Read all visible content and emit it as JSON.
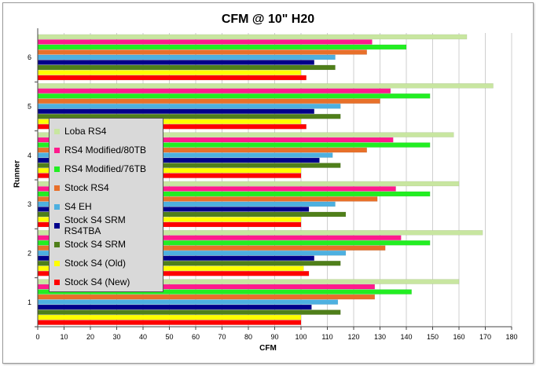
{
  "chart_data": {
    "type": "bar",
    "orientation": "horizontal",
    "title": "CFM @ 10\" H20",
    "xlabel": "CFM",
    "ylabel": "Runner",
    "xlim": [
      0,
      180
    ],
    "xticks": [
      0,
      10,
      20,
      30,
      40,
      50,
      60,
      70,
      80,
      90,
      100,
      110,
      120,
      130,
      140,
      150,
      160,
      170,
      180
    ],
    "categories": [
      "1",
      "2",
      "3",
      "4",
      "5",
      "6"
    ],
    "grid": "vertical",
    "legend_position": "left-center",
    "series": [
      {
        "name": "Stock S4 (New)",
        "color": "#ff0000",
        "values": [
          100,
          103,
          100,
          100,
          102,
          102
        ]
      },
      {
        "name": "Stock S4 (Old)",
        "color": "#ffff00",
        "values": [
          100,
          101,
          100,
          100,
          100,
          100
        ]
      },
      {
        "name": "Stock S4 SRM",
        "color": "#4f7f1a",
        "values": [
          115,
          115,
          117,
          115,
          115,
          113
        ]
      },
      {
        "name": "Stock S4 SRM RS4TBA",
        "color": "#00008b",
        "values": [
          104,
          105,
          103,
          107,
          105,
          105
        ]
      },
      {
        "name": "S4 EH",
        "color": "#4db0e0",
        "values": [
          114,
          117,
          113,
          112,
          115,
          113
        ]
      },
      {
        "name": "Stock RS4",
        "color": "#e8702a",
        "values": [
          128,
          132,
          129,
          125,
          130,
          125
        ]
      },
      {
        "name": "RS4 Modified/76TB",
        "color": "#22ee22",
        "values": [
          142,
          149,
          149,
          149,
          149,
          140
        ]
      },
      {
        "name": "RS4 Modified/80TB",
        "color": "#ff1a8c",
        "values": [
          128,
          138,
          136,
          135,
          134,
          127
        ]
      },
      {
        "name": "Loba RS4",
        "color": "#c8e6a0",
        "values": [
          160,
          169,
          160,
          158,
          173,
          163
        ]
      }
    ]
  }
}
